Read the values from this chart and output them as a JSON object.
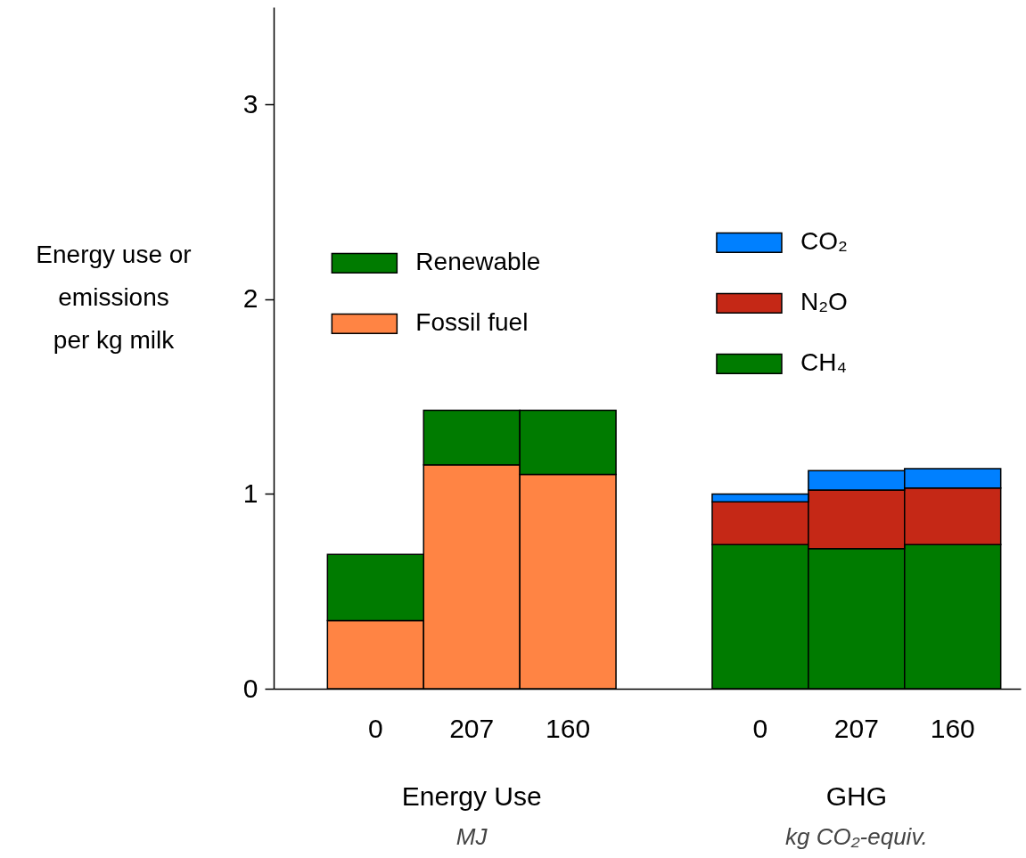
{
  "chart_data": {
    "type": "bar",
    "stacked": true,
    "categories": [
      "0",
      "207",
      "160",
      null,
      "0",
      "207",
      "160"
    ],
    "ylabel": "Energy use or\nemissions\nper kg milk",
    "ylim": [
      0,
      3.5
    ],
    "yticks": [
      0,
      1,
      2,
      3
    ],
    "series": [
      {
        "name": "Fossil fuel",
        "color": "#ff8444",
        "values": [
          0.35,
          1.15,
          1.1,
          null,
          null,
          null,
          null
        ]
      },
      {
        "name": "Renewable",
        "color": "#007b00",
        "values": [
          0.34,
          0.28,
          0.33,
          null,
          null,
          null,
          null
        ]
      },
      {
        "name": "CH₄",
        "color": "#007b00",
        "values": [
          null,
          null,
          null,
          null,
          0.74,
          0.72,
          0.74
        ]
      },
      {
        "name": "N₂O",
        "color": "#c52816",
        "values": [
          null,
          null,
          null,
          null,
          0.22,
          0.3,
          0.29
        ]
      },
      {
        "name": "CO₂",
        "color": "#0080ff",
        "values": [
          null,
          null,
          null,
          null,
          0.04,
          0.1,
          0.1
        ]
      }
    ],
    "annotations": [
      "Energy Use",
      "MJ",
      "GHG",
      "kg CO₂-equiv."
    ],
    "legend": "top",
    "grid": false
  }
}
